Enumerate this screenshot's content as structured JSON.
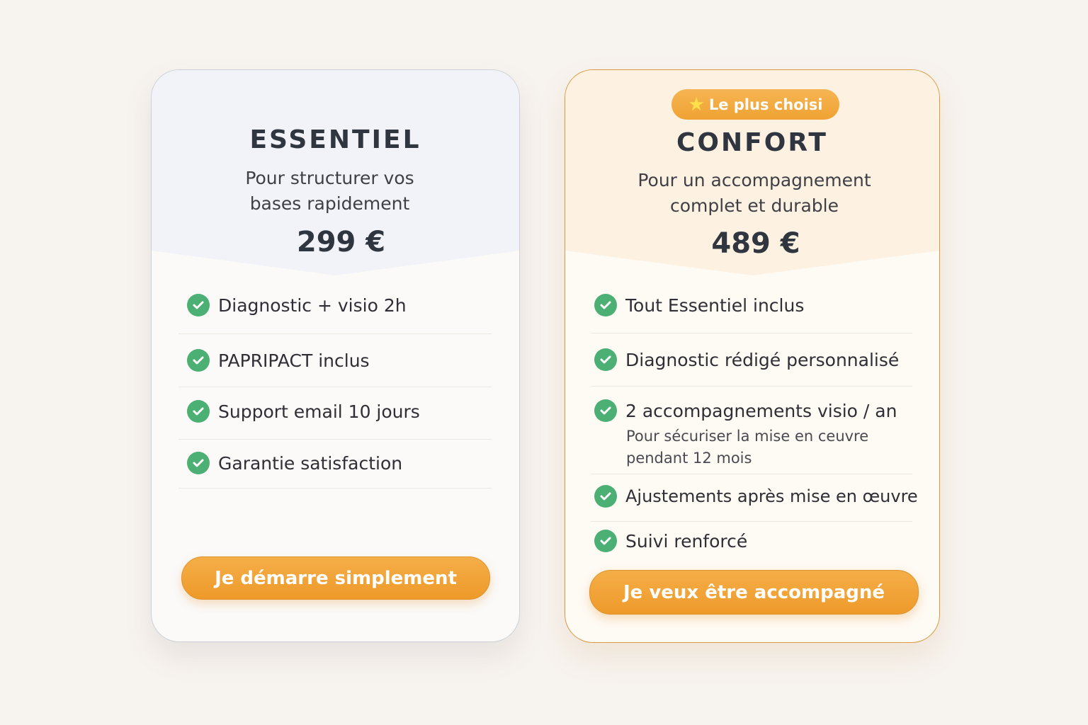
{
  "plans": [
    {
      "name": "ESSENTIEL",
      "subtitle_line1": "Pour structurer vos",
      "subtitle_line2": "bases rapidement",
      "price": "299 €",
      "features": [
        "Diagnostic + visio 2h",
        "PAPRIPACT inclus",
        "Support email 10 jours",
        "Garantie satisfaction"
      ],
      "cta": "Je démarre simplement"
    },
    {
      "badge": "Le plus choisi",
      "badge_icon": "star-icon",
      "name": "CONFORT",
      "subtitle_line1": "Pour un accompagnement",
      "subtitle_line2": "complet et durable",
      "price": "489 €",
      "features": [
        "Tout Essentiel inclus",
        "Diagnostic rédigé personnalisé",
        "2 accompagnements visio / an",
        "Ajustements après mise en œuvre",
        "Suivi renforcé"
      ],
      "feature_note_line1": "Pour sécuriser la mise en ceuvre",
      "feature_note_line2": "pendant 12 mois",
      "cta": "Je veux être accompagné"
    }
  ],
  "colors": {
    "accent": "#f0a030",
    "check": "#4caf73",
    "text": "#2f3640"
  }
}
